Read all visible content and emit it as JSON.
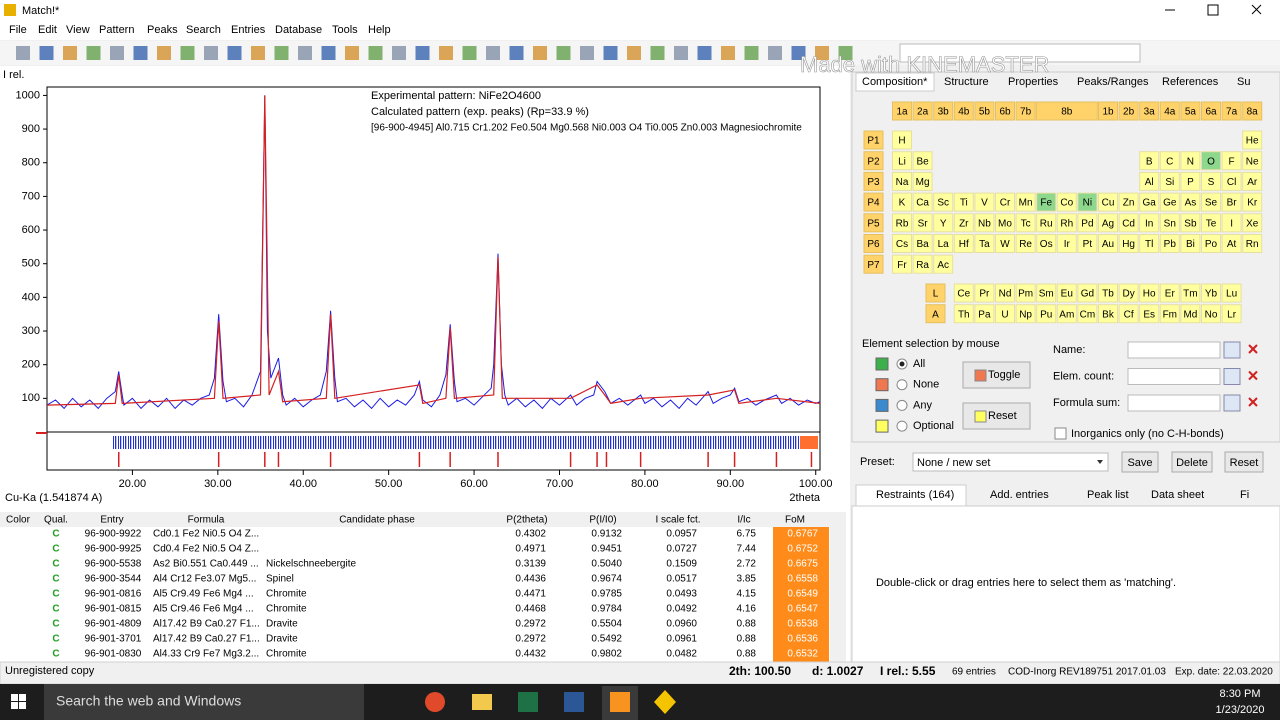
{
  "window": {
    "title": "Match!*"
  },
  "menu": [
    "File",
    "Edit",
    "View",
    "Pattern",
    "Peaks",
    "Search",
    "Entries",
    "Database",
    "Tools",
    "Help"
  ],
  "watermark": "Made with KINEMASTER",
  "chart_data": {
    "type": "line",
    "y_label": "I rel.",
    "x_label": "2theta",
    "wavelength": "Cu-Ka (1.541874 A)",
    "xlim": [
      10,
      100.5
    ],
    "ylim": [
      0,
      1025
    ],
    "xticks": [
      {
        "value": 20,
        "label": "20.00"
      },
      {
        "value": 30,
        "label": "30.00"
      },
      {
        "value": 40,
        "label": "40.00"
      },
      {
        "value": 50,
        "label": "50.00"
      },
      {
        "value": 60,
        "label": "60.00"
      },
      {
        "value": 70,
        "label": "70.00"
      },
      {
        "value": 80,
        "label": "80.00"
      },
      {
        "value": 90,
        "label": "90.00"
      },
      {
        "value": 100,
        "label": "100.00"
      }
    ],
    "yticks": [
      100,
      200,
      300,
      400,
      500,
      600,
      700,
      800,
      900,
      1000
    ],
    "series": [
      {
        "name": "Experimental pattern: NiFe2O4600",
        "color": "#1a1ae6",
        "x": [
          10,
          11,
          12,
          13,
          14,
          15,
          16,
          17,
          18,
          18.4,
          18.8,
          19,
          20,
          21,
          22,
          23,
          24,
          25,
          26,
          27,
          28,
          29,
          29.6,
          30.1,
          30.6,
          31,
          32,
          33,
          34,
          35,
          35.5,
          35.8,
          36.2,
          37.1,
          37.6,
          38,
          39,
          40,
          41,
          42,
          42.7,
          43.2,
          43.7,
          44,
          45,
          46,
          47,
          48,
          49,
          50,
          51,
          52,
          53,
          53.6,
          54,
          55,
          56,
          56.7,
          57.2,
          57.7,
          58,
          59,
          60,
          61,
          62,
          62.3,
          62.8,
          63.2,
          63.6,
          64,
          65,
          66,
          67,
          68,
          69,
          70,
          71.3,
          72,
          73,
          74,
          74.4,
          75.3,
          76,
          77,
          78,
          79.5,
          80,
          81,
          82,
          83,
          84,
          85,
          86,
          87.4,
          88,
          89,
          90,
          90.5,
          91,
          92,
          93,
          94,
          95.4,
          96,
          97,
          98,
          99,
          100,
          100.5
        ],
        "values": [
          80,
          95,
          70,
          100,
          75,
          95,
          70,
          100,
          120,
          180,
          110,
          80,
          100,
          70,
          95,
          75,
          100,
          70,
          95,
          80,
          100,
          110,
          160,
          350,
          150,
          90,
          100,
          75,
          110,
          180,
          1000,
          300,
          160,
          220,
          110,
          80,
          100,
          75,
          95,
          110,
          180,
          360,
          160,
          90,
          100,
          75,
          95,
          70,
          100,
          75,
          95,
          80,
          110,
          150,
          95,
          75,
          110,
          170,
          320,
          150,
          90,
          100,
          80,
          105,
          130,
          200,
          530,
          200,
          110,
          80,
          100,
          75,
          95,
          70,
          100,
          80,
          110,
          80,
          100,
          110,
          150,
          120,
          85,
          100,
          80,
          110,
          85,
          100,
          75,
          95,
          70,
          100,
          80,
          120,
          85,
          100,
          110,
          130,
          90,
          100,
          80,
          95,
          110,
          85,
          100,
          80,
          95,
          85,
          90
        ]
      },
      {
        "name": "Calculated pattern (exp. peaks) (Rp=33.9 %)",
        "color": "#d42020",
        "x": [
          10,
          18,
          18.4,
          18.8,
          29.6,
          30.1,
          30.6,
          35,
          35.5,
          36,
          37.1,
          37.6,
          42.7,
          43.2,
          43.7,
          53.6,
          54,
          56.7,
          57.2,
          57.7,
          62.3,
          62.8,
          63.3,
          71.3,
          74.4,
          75.3,
          76,
          79.5,
          87.4,
          90.5,
          91,
          95.4,
          100.5
        ],
        "values": [
          80,
          85,
          170,
          85,
          100,
          330,
          100,
          110,
          1000,
          110,
          180,
          90,
          100,
          350,
          100,
          140,
          85,
          100,
          310,
          100,
          110,
          520,
          100,
          100,
          140,
          110,
          85,
          100,
          110,
          125,
          85,
          100,
          85
        ]
      }
    ],
    "reference": {
      "name": "[96-900-4945] Al0.715 Cr1.202 Fe0.504 Mg0.568 Ni0.003 O4 Ti0.005 Zn0.003 Magnesiochromite",
      "color": "#d42020",
      "peaks": [
        18.4,
        30.1,
        35.5,
        37.1,
        43.2,
        53.6,
        57.2,
        62.8,
        71.3,
        74.4,
        75.5,
        79.5,
        87.4,
        90.5,
        95.4,
        99.5
      ]
    }
  },
  "panel": {
    "tabs": [
      "Composition*",
      "Structure",
      "Properties",
      "Peaks/Ranges",
      "References",
      "Su"
    ],
    "groups": [
      "1a",
      "2a",
      "3b",
      "4b",
      "5b",
      "6b",
      "7b",
      "8b",
      "1b",
      "2b",
      "3a",
      "4a",
      "5a",
      "6a",
      "7a",
      "8a"
    ],
    "period_labels": [
      "P1",
      "P2",
      "P3",
      "P4",
      "P5",
      "P6",
      "P7"
    ],
    "rows": [
      [
        "H",
        null,
        null,
        null,
        null,
        null,
        null,
        null,
        null,
        null,
        null,
        null,
        null,
        null,
        null,
        null,
        null,
        "He"
      ],
      [
        "Li",
        "Be",
        null,
        null,
        null,
        null,
        null,
        null,
        null,
        null,
        null,
        null,
        "B",
        "C",
        "N",
        "O",
        "F",
        "Ne"
      ],
      [
        "Na",
        "Mg",
        null,
        null,
        null,
        null,
        null,
        null,
        null,
        null,
        null,
        null,
        "Al",
        "Si",
        "P",
        "S",
        "Cl",
        "Ar"
      ],
      [
        "K",
        "Ca",
        "Sc",
        "Ti",
        "V",
        "Cr",
        "Mn",
        "Fe",
        "Co",
        "Ni",
        "Cu",
        "Zn",
        "Ga",
        "Ge",
        "As",
        "Se",
        "Br",
        "Kr"
      ],
      [
        "Rb",
        "Sr",
        "Y",
        "Zr",
        "Nb",
        "Mo",
        "Tc",
        "Ru",
        "Rh",
        "Pd",
        "Ag",
        "Cd",
        "In",
        "Sn",
        "Sb",
        "Te",
        "I",
        "Xe"
      ],
      [
        "Cs",
        "Ba",
        "La",
        "Hf",
        "Ta",
        "W",
        "Re",
        "Os",
        "Ir",
        "Pt",
        "Au",
        "Hg",
        "Tl",
        "Pb",
        "Bi",
        "Po",
        "At",
        "Rn"
      ],
      [
        "Fr",
        "Ra",
        "Ac"
      ]
    ],
    "series_labels": [
      "L",
      "A"
    ],
    "series_rows": [
      [
        "Ce",
        "Pr",
        "Nd",
        "Pm",
        "Sm",
        "Eu",
        "Gd",
        "Tb",
        "Dy",
        "Ho",
        "Er",
        "Tm",
        "Yb",
        "Lu"
      ],
      [
        "Th",
        "Pa",
        "U",
        "Np",
        "Pu",
        "Am",
        "Cm",
        "Bk",
        "Cf",
        "Es",
        "Fm",
        "Md",
        "No",
        "Lr"
      ]
    ],
    "selected": [
      "O",
      "Fe",
      "Ni"
    ],
    "selection": {
      "title": "Element selection by mouse",
      "radios": [
        "All",
        "None",
        "Any",
        "Optional"
      ],
      "buttons": [
        "Toggle",
        "Reset"
      ],
      "fields": [
        "Name:",
        "Elem. count:",
        "Formula sum:"
      ],
      "checkbox": "Inorganics only (no C-H-bonds)"
    },
    "preset": {
      "label": "Preset:",
      "value": "None / new set",
      "buttons": [
        "Save",
        "Delete",
        "Reset"
      ]
    },
    "tabs2": [
      "Restraints (164)",
      "Add. entries",
      "Peak list",
      "Data sheet",
      "Fi"
    ],
    "message": "Double-click or drag entries here to select them as 'matching'."
  },
  "table": {
    "columns": [
      "Color",
      "Qual.",
      "Entry",
      "Formula",
      "Candidate phase",
      "P(2theta)",
      "P(I/I0)",
      "I scale fct.",
      "I/Ic",
      "FoM"
    ],
    "rows": [
      [
        "C",
        "96-900-9922",
        "Cd0.1 Fe2 Ni0.5 O4 Z...",
        null,
        "0.4302",
        "0.9132",
        "0.0957",
        "6.75",
        "0.6767"
      ],
      [
        "C",
        "96-900-9925",
        "Cd0.4 Fe2 Ni0.5 O4 Z...",
        null,
        "0.4971",
        "0.9451",
        "0.0727",
        "7.44",
        "0.6752"
      ],
      [
        "C",
        "96-900-5538",
        "As2 Bi0.551 Ca0.449 ...",
        "Nickelschneebergite",
        "0.3139",
        "0.5040",
        "0.1509",
        "2.72",
        "0.6675"
      ],
      [
        "C",
        "96-900-3544",
        "Al4 Cr12 Fe3.07 Mg5...",
        "Spinel",
        "0.4436",
        "0.9674",
        "0.0517",
        "3.85",
        "0.6558"
      ],
      [
        "C",
        "96-901-0816",
        "Al5 Cr9.49 Fe6 Mg4 ...",
        "Chromite",
        "0.4471",
        "0.9785",
        "0.0493",
        "4.15",
        "0.6549"
      ],
      [
        "C",
        "96-901-0815",
        "Al5 Cr9.46 Fe6 Mg4 ...",
        "Chromite",
        "0.4468",
        "0.9784",
        "0.0492",
        "4.16",
        "0.6547"
      ],
      [
        "C",
        "96-901-4809",
        "Al17.42 B9 Ca0.27 F1...",
        "Dravite",
        "0.2972",
        "0.5504",
        "0.0960",
        "0.88",
        "0.6538"
      ],
      [
        "C",
        "96-901-3701",
        "Al17.42 B9 Ca0.27 F1...",
        "Dravite",
        "0.2972",
        "0.5492",
        "0.0961",
        "0.88",
        "0.6536"
      ],
      [
        "C",
        "96-901-0830",
        "Al4.33 Cr9 Fe7 Mg3.2...",
        "Chromite",
        "0.4432",
        "0.9802",
        "0.0482",
        "0.88",
        "0.6532"
      ]
    ]
  },
  "status": {
    "left": "Unregistered copy",
    "items": [
      "2th: 100.50",
      "d: 1.0027",
      "I rel.: 5.55",
      "69 entries",
      "COD-Inorg REV189751 2017.01.03",
      "Exp. date: 22.03.2020"
    ]
  },
  "taskbar": {
    "search": "Search the web and Windows",
    "time": "8:30 PM",
    "date": "1/23/2020"
  }
}
